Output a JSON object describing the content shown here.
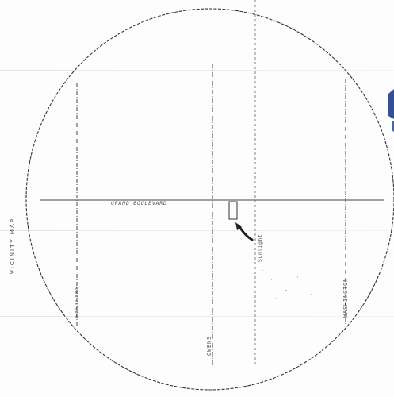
{
  "map": {
    "title": "VICINITY  MAP",
    "streets": {
      "horizontal": "GRAND BOULEVARD",
      "vertical_left": "EASTLAKE",
      "vertical_center": "OWENS",
      "vertical_right": "WASHINGTON",
      "vertical_center_right": "Sunlight"
    }
  },
  "colors": {
    "ink": "#333333",
    "faint_ink": "#777777",
    "paper": "#fdfdfd",
    "scan_band": "#c9d6e6",
    "accent_blue": "#1f3c8a"
  },
  "icons": {
    "site_marker": "rectangle-outline",
    "pointer": "curved-arrow-icon"
  }
}
